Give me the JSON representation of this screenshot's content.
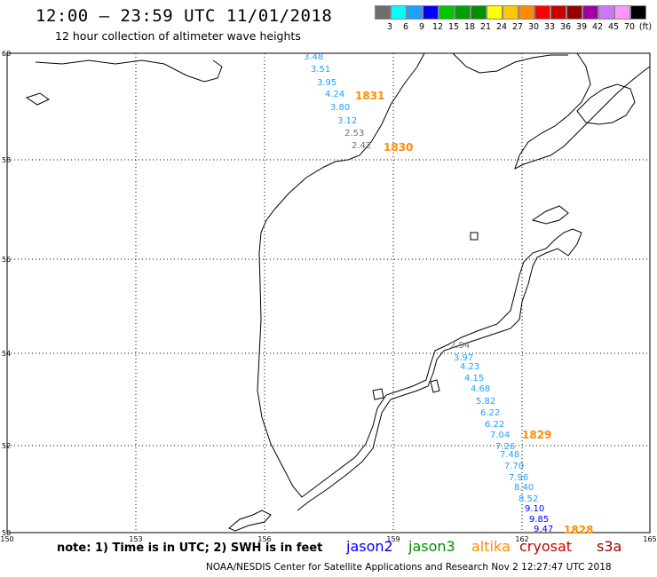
{
  "title": "12:00 – 23:59 UTC 11/01/2018",
  "subtitle": "12 hour collection of altimeter wave heights",
  "colorbar": {
    "colors": [
      "#6e6e6e",
      "#00ffff",
      "#1ea0ff",
      "#0000ff",
      "#00c800",
      "#00a000",
      "#009000",
      "#ffff00",
      "#ffc800",
      "#ff8c00",
      "#ff0000",
      "#c80000",
      "#960000",
      "#a000a0",
      "#c878ff",
      "#ff96ff",
      "#000000"
    ],
    "labels": [
      "3",
      "6",
      "9",
      "12",
      "15",
      "18",
      "21",
      "24",
      "27",
      "30",
      "33",
      "36",
      "39",
      "42",
      "45",
      "70",
      "(ft)"
    ]
  },
  "axes": {
    "lon_ticks": [
      "150",
      "153",
      "156",
      "159",
      "162",
      "165"
    ],
    "lat_ticks": [
      "60",
      "58",
      "56",
      "54",
      "52",
      "50"
    ]
  },
  "passes": [
    {
      "id": "1831",
      "label": "1831",
      "label_color": "#ff8c00"
    },
    {
      "id": "1830",
      "label": "1830",
      "label_color": "#ff8c00"
    },
    {
      "id": "1829",
      "label": "1829",
      "label_color": "#ff8c00"
    },
    {
      "id": "1828",
      "label": "1828",
      "label_color": "#ff8c00"
    }
  ],
  "wave_heights": [
    {
      "value": "3.48",
      "color": "#1ea0ff"
    },
    {
      "value": "3.51",
      "color": "#1ea0ff"
    },
    {
      "value": "3.95",
      "color": "#1ea0ff"
    },
    {
      "value": "4.24",
      "color": "#1ea0ff"
    },
    {
      "value": "3.80",
      "color": "#1ea0ff"
    },
    {
      "value": "3.12",
      "color": "#1ea0ff"
    },
    {
      "value": "2.53",
      "color": "#6e6e6e"
    },
    {
      "value": "2.42",
      "color": "#6e6e6e"
    },
    {
      "value": "2.94",
      "color": "#6e6e6e"
    },
    {
      "value": "3.97",
      "color": "#1ea0ff"
    },
    {
      "value": "4.23",
      "color": "#1ea0ff"
    },
    {
      "value": "4.15",
      "color": "#1ea0ff"
    },
    {
      "value": "4.68",
      "color": "#1ea0ff"
    },
    {
      "value": "5.82",
      "color": "#1ea0ff"
    },
    {
      "value": "6.22",
      "color": "#1ea0ff"
    },
    {
      "value": "6.22",
      "color": "#1ea0ff"
    },
    {
      "value": "7.04",
      "color": "#1ea0ff"
    },
    {
      "value": "7.26",
      "color": "#1ea0ff"
    },
    {
      "value": "7.48",
      "color": "#1ea0ff"
    },
    {
      "value": "7.70",
      "color": "#1ea0ff"
    },
    {
      "value": "7.96",
      "color": "#1ea0ff"
    },
    {
      "value": "8.40",
      "color": "#1ea0ff"
    },
    {
      "value": "8.52",
      "color": "#1ea0ff"
    },
    {
      "value": "9.10",
      "color": "#0000ff"
    },
    {
      "value": "9.85",
      "color": "#0000ff"
    },
    {
      "value": "9.47",
      "color": "#0000ff"
    }
  ],
  "footer": {
    "note": "note: 1) Time is in UTC; 2) SWH is in feet",
    "satellites": [
      {
        "name": "jason2",
        "color": "#0000ff"
      },
      {
        "name": "jason3",
        "color": "#009000"
      },
      {
        "name": "altika",
        "color": "#ff8c00"
      },
      {
        "name": "cryosat",
        "color": "#c80000"
      },
      {
        "name": "s3a",
        "color": "#960000"
      }
    ],
    "credit": "NOAA/NESDIS Center for Satellite Applications and Research   Nov  2 12:27:47 UTC 2018"
  }
}
